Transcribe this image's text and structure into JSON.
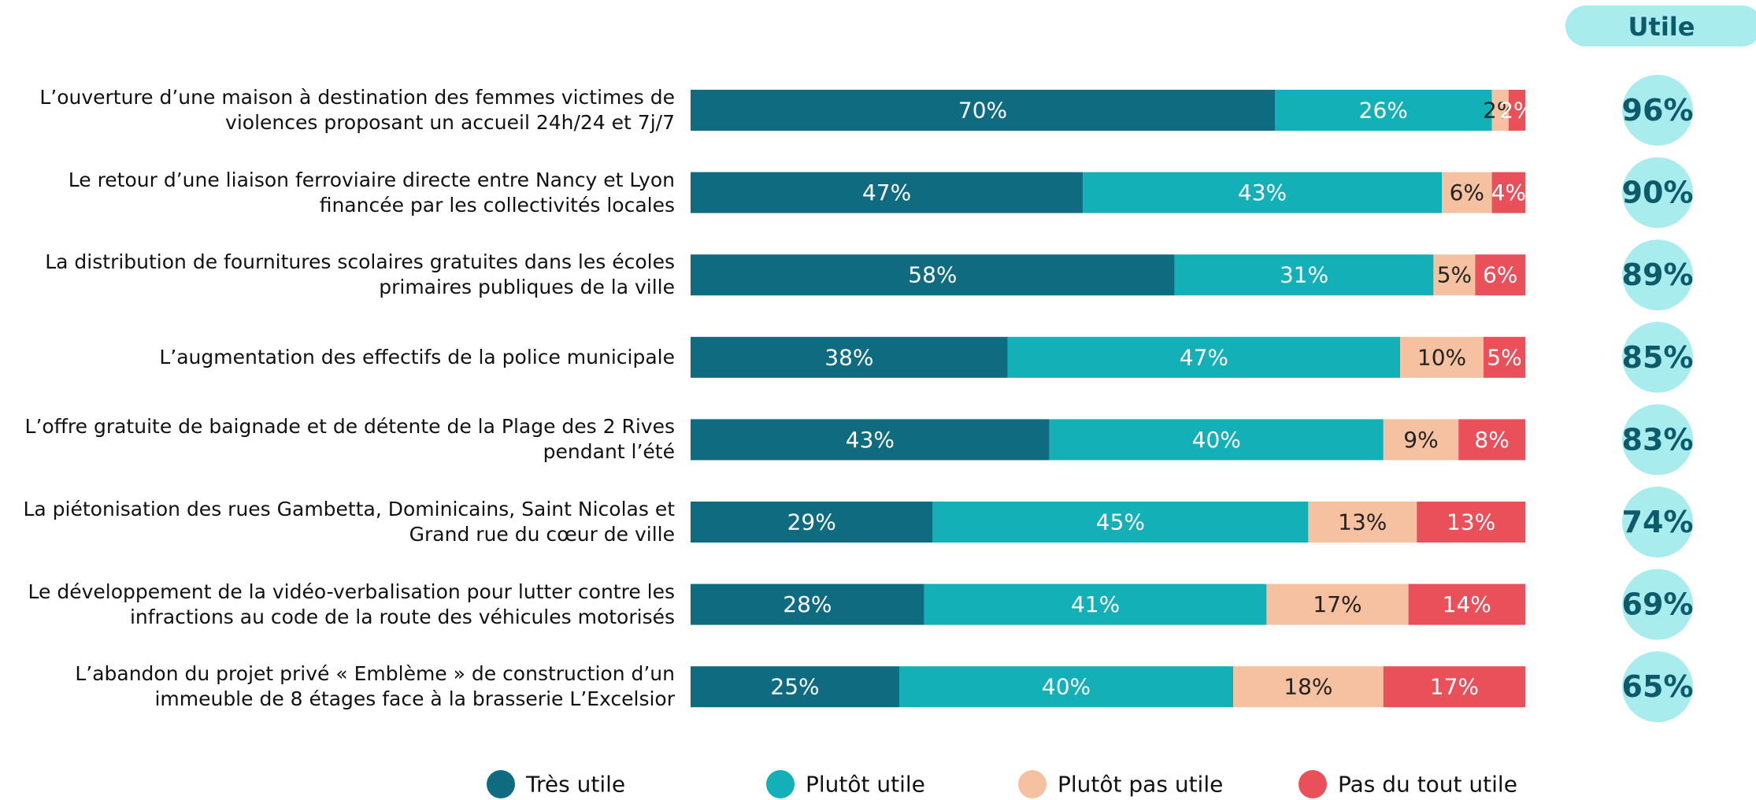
{
  "chart_data": {
    "type": "stacked_bar_horizontal",
    "categories": [
      "L’ouverture d’une maison à destination des femmes victimes de violences proposant un accueil 24h/24 et 7j/7",
      "Le retour d’une liaison ferroviaire directe entre Nancy et Lyon financée par les collectivités locales",
      "La distribution de fournitures scolaires gratuites dans les écoles primaires publiques de la ville",
      "L’augmentation des effectifs de la police municipale",
      "L’offre gratuite de baignade et de détente de la Plage des 2 Rives pendant l’été",
      "La piétonisation des rues Gambetta, Dominicains, Saint Nicolas et Grand rue du cœur de ville",
      "Le développement de la vidéo-verbalisation pour lutter contre les infractions au code de la route des véhicules motorisés",
      "L’abandon du projet privé « Emblème » de construction d’un immeuble de 8 étages face à la brasserie L’Excelsior"
    ],
    "xlim": [
      0,
      100
    ],
    "series": [
      {
        "name": "Très utile",
        "color": "#0f6b80",
        "values": [
          70,
          47,
          58,
          38,
          43,
          29,
          28,
          25
        ],
        "value_labels": [
          "70%",
          "47%",
          "58%",
          "38%",
          "43%",
          "29%",
          "28%",
          "25%"
        ]
      },
      {
        "name": "Plutôt utile",
        "color": "#13b0b8",
        "values": [
          26,
          43,
          31,
          47,
          40,
          45,
          41,
          40
        ],
        "value_labels": [
          "26%",
          "43%",
          "31%",
          "47%",
          "40%",
          "45%",
          "41%",
          "40%"
        ]
      },
      {
        "name": "Plutôt pas utile",
        "color": "#f6c1a0",
        "values": [
          2,
          6,
          5,
          10,
          9,
          13,
          17,
          18
        ],
        "value_labels": [
          "2%",
          "6%",
          "5%",
          "10%",
          "9%",
          "13%",
          "17%",
          "18%"
        ]
      },
      {
        "name": "Pas du tout utile",
        "color": "#e9505a",
        "values": [
          2,
          4,
          6,
          5,
          8,
          13,
          14,
          17
        ],
        "value_labels": [
          "2%",
          "4%",
          "6%",
          "5%",
          "8%",
          "13%",
          "14%",
          "17%"
        ]
      }
    ],
    "summary": {
      "title": "Utile",
      "color": "#a8ecee",
      "values": [
        96,
        90,
        89,
        85,
        83,
        74,
        69,
        65
      ],
      "value_labels": [
        "96%",
        "90%",
        "89%",
        "85%",
        "83%",
        "74%",
        "69%",
        "65%"
      ]
    }
  }
}
